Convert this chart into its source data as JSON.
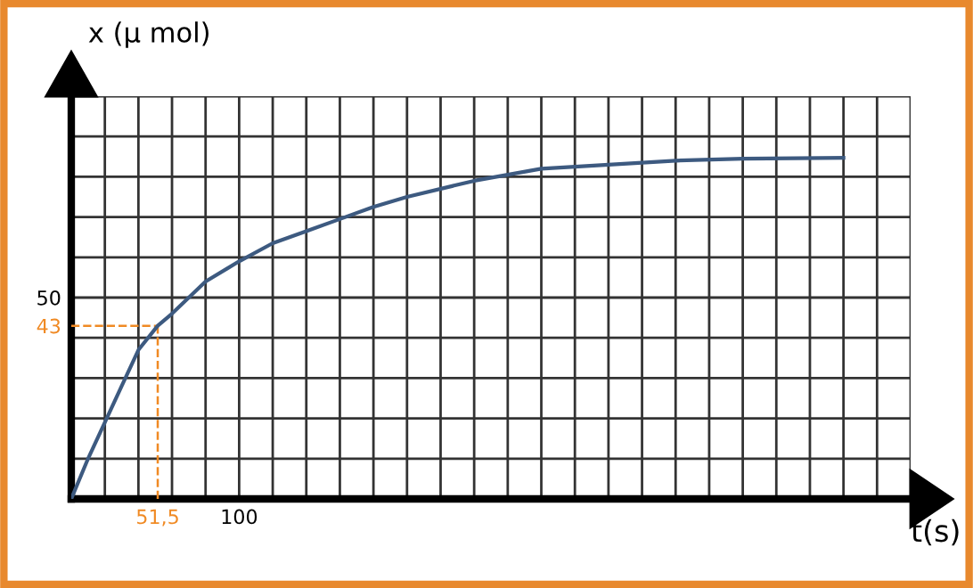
{
  "chart_data": {
    "type": "line",
    "xlabel": "t(s)",
    "ylabel": "x (µ mol)",
    "x": [
      0,
      10,
      20,
      30,
      40,
      51.5,
      60,
      80,
      100,
      120,
      140,
      160,
      180,
      200,
      240,
      280,
      320,
      360,
      400,
      460
    ],
    "series": [
      {
        "color": "#3d5a80",
        "values": [
          0,
          10,
          19,
          28,
          37,
          43,
          46,
          54,
          59,
          63.5,
          66.5,
          69.5,
          72.5,
          75,
          79,
          82,
          83,
          84,
          84.5,
          84.7
        ]
      }
    ],
    "xlim": [
      0,
      500
    ],
    "ylim": [
      0,
      100
    ],
    "xticks": [
      {
        "value": 20,
        "label": null
      },
      {
        "value": 40,
        "label": null
      },
      {
        "value": 51.5,
        "label": "51,5"
      },
      {
        "value": 60,
        "label": null
      },
      {
        "value": 80,
        "label": null
      },
      100,
      {
        "value": 120,
        "label": null
      },
      {
        "value": 140,
        "label": null
      },
      {
        "value": 160,
        "label": null
      },
      {
        "value": 180,
        "label": null
      },
      {
        "value": 200,
        "label": null
      },
      {
        "value": 220,
        "label": null
      },
      {
        "value": 240,
        "label": null
      },
      {
        "value": 260,
        "label": null
      },
      {
        "value": 280,
        "label": null
      },
      {
        "value": 300,
        "label": null
      },
      {
        "value": 320,
        "label": null
      },
      {
        "value": 340,
        "label": null
      },
      {
        "value": 360,
        "label": null
      },
      {
        "value": 380,
        "label": null
      },
      {
        "value": 400,
        "label": null
      },
      {
        "value": 420,
        "label": null
      },
      {
        "value": 440,
        "label": null
      },
      {
        "value": 460,
        "label": null
      },
      {
        "value": 480,
        "label": null
      },
      {
        "value": 500,
        "label": null
      }
    ],
    "yticks": [
      {
        "value": 10,
        "label": null
      },
      {
        "value": 20,
        "label": null
      },
      {
        "value": 30,
        "label": null
      },
      {
        "value": 40,
        "label": null
      },
      43,
      50,
      {
        "value": 60,
        "label": null
      },
      {
        "value": 70,
        "label": null
      },
      {
        "value": 80,
        "label": null
      },
      {
        "value": 90,
        "label": null
      },
      {
        "value": 100,
        "label": null
      }
    ],
    "ref_lines": [
      {
        "axis": "y",
        "value": 43,
        "color": "#f08a24",
        "line_style": "dashed"
      },
      {
        "axis": "x",
        "value": 51.5,
        "color": "#f08a24",
        "line_style": "dashed"
      }
    ],
    "grid": true,
    "marker": "none",
    "line_style": "solid",
    "legend": false
  }
}
